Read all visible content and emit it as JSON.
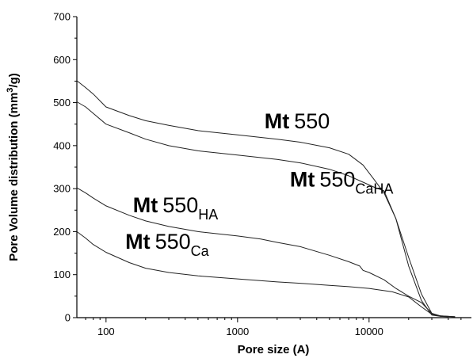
{
  "chart_data": {
    "type": "line",
    "xlabel": "Pore size (A)",
    "ylabel_parts": [
      "Pore Volume distribution (mm",
      "3",
      "/g)"
    ],
    "x_scale": "log",
    "xlim": [
      60,
      60000
    ],
    "ylim": [
      0,
      700
    ],
    "x_ticks": [
      100,
      1000,
      10000
    ],
    "x_tick_labels": [
      "100",
      "1000",
      "10000"
    ],
    "y_ticks": [
      0,
      100,
      200,
      300,
      400,
      500,
      600,
      700
    ],
    "y_tick_labels": [
      "0",
      "100",
      "200",
      "300",
      "400",
      "500",
      "600",
      "700"
    ],
    "grid": false,
    "series": [
      {
        "label_main": "Mt",
        "label_num": "550",
        "label_sub": "",
        "color": "#222222",
        "points": [
          [
            60,
            551
          ],
          [
            70,
            535
          ],
          [
            80,
            520
          ],
          [
            100,
            490
          ],
          [
            150,
            470
          ],
          [
            200,
            458
          ],
          [
            300,
            447
          ],
          [
            500,
            435
          ],
          [
            1000,
            425
          ],
          [
            2000,
            415
          ],
          [
            3000,
            408
          ],
          [
            5000,
            395
          ],
          [
            7000,
            380
          ],
          [
            9000,
            355
          ],
          [
            11000,
            320
          ],
          [
            13000,
            290
          ],
          [
            16000,
            230
          ],
          [
            20000,
            140
          ],
          [
            25000,
            55
          ],
          [
            30000,
            10
          ],
          [
            35000,
            3
          ],
          [
            45000,
            2
          ]
        ]
      },
      {
        "label_main": "Mt",
        "label_num": "550",
        "label_sub": "CaHA",
        "color": "#222222",
        "points": [
          [
            60,
            502
          ],
          [
            70,
            490
          ],
          [
            80,
            475
          ],
          [
            100,
            450
          ],
          [
            150,
            430
          ],
          [
            200,
            415
          ],
          [
            300,
            400
          ],
          [
            500,
            388
          ],
          [
            1000,
            378
          ],
          [
            2000,
            368
          ],
          [
            3000,
            360
          ],
          [
            5000,
            345
          ],
          [
            7000,
            330
          ],
          [
            9000,
            315
          ],
          [
            11000,
            303
          ],
          [
            13000,
            295
          ],
          [
            16000,
            230
          ],
          [
            20000,
            120
          ],
          [
            25000,
            40
          ],
          [
            30000,
            6
          ],
          [
            35000,
            3
          ],
          [
            40000,
            2
          ]
        ]
      },
      {
        "label_main": "Mt",
        "label_num": "550",
        "label_sub": "HA",
        "color": "#222222",
        "points": [
          [
            60,
            302
          ],
          [
            70,
            290
          ],
          [
            80,
            278
          ],
          [
            100,
            260
          ],
          [
            150,
            238
          ],
          [
            200,
            225
          ],
          [
            300,
            212
          ],
          [
            500,
            200
          ],
          [
            1000,
            190
          ],
          [
            1500,
            183
          ],
          [
            2000,
            175
          ],
          [
            3000,
            165
          ],
          [
            5000,
            145
          ],
          [
            7000,
            130
          ],
          [
            8500,
            120
          ],
          [
            9000,
            110
          ],
          [
            10000,
            105
          ],
          [
            13000,
            88
          ],
          [
            16000,
            68
          ],
          [
            20000,
            50
          ],
          [
            25000,
            35
          ],
          [
            30000,
            10
          ],
          [
            35000,
            4
          ],
          [
            45000,
            2
          ]
        ]
      },
      {
        "label_main": "Mt",
        "label_num": "550",
        "label_sub": "Ca",
        "color": "#222222",
        "points": [
          [
            60,
            200
          ],
          [
            70,
            185
          ],
          [
            80,
            170
          ],
          [
            100,
            152
          ],
          [
            150,
            128
          ],
          [
            200,
            115
          ],
          [
            300,
            105
          ],
          [
            500,
            97
          ],
          [
            1000,
            90
          ],
          [
            2000,
            83
          ],
          [
            3000,
            80
          ],
          [
            5000,
            75
          ],
          [
            7000,
            72
          ],
          [
            10000,
            68
          ],
          [
            15000,
            60
          ],
          [
            20000,
            48
          ],
          [
            25000,
            25
          ],
          [
            30000,
            8
          ],
          [
            35000,
            4
          ],
          [
            45000,
            2
          ]
        ]
      }
    ],
    "annotations": [
      {
        "series": 0,
        "x": 1600,
        "y": 440
      },
      {
        "series": 1,
        "x": 2500,
        "y": 305
      },
      {
        "series": 2,
        "x": 160,
        "y": 245
      },
      {
        "series": 3,
        "x": 140,
        "y": 160
      }
    ]
  }
}
